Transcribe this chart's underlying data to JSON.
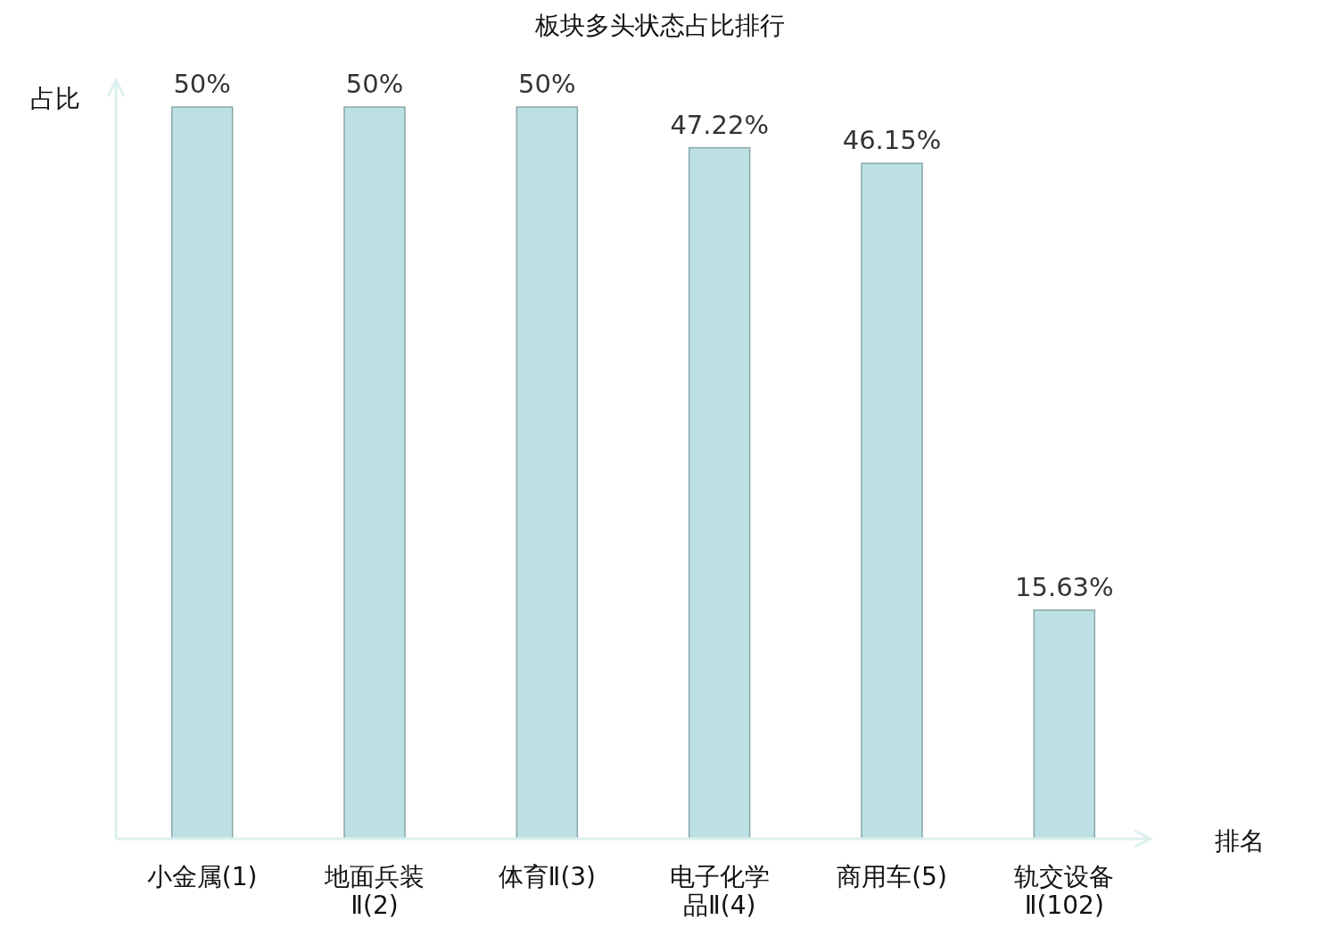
{
  "chart_data": {
    "type": "bar",
    "title": "板块多头状态占比排行",
    "xlabel": "排名",
    "ylabel": "占比",
    "categories": [
      "小金属(1)",
      "地面兵装Ⅱ(2)",
      "体育Ⅱ(3)",
      "电子化学品Ⅱ(4)",
      "商用车(5)",
      "轨交设备Ⅱ(102)"
    ],
    "values": [
      50,
      50,
      50,
      47.22,
      46.15,
      15.63
    ],
    "value_labels": [
      "50%",
      "50%",
      "50%",
      "47.22%",
      "46.15%",
      "15.63%"
    ],
    "color": "#bce0e3"
  }
}
